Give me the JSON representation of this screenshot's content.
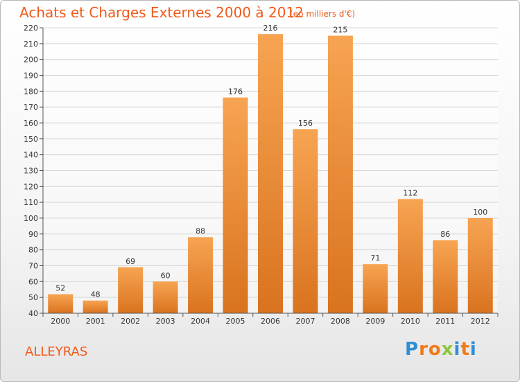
{
  "header": {
    "title": "Achats et Charges Externes 2000 à 2012",
    "unit_note": "(en milliers d'€)"
  },
  "footer": {
    "location": "ALLEYRAS",
    "logo_letters": [
      "P",
      "r",
      "o",
      "x",
      "i",
      "t",
      "i"
    ]
  },
  "colors": {
    "title": "#f05a1a",
    "bar_top": "#f7a452",
    "bar_bottom": "#d9731f",
    "logo": [
      "#2e8fd6",
      "#f07a1a",
      "#f07a1a",
      "#8cc63f",
      "#2e8fd6",
      "#f07a1a",
      "#2e8fd6"
    ]
  },
  "chart_data": {
    "type": "bar",
    "title": "Achats et Charges Externes 2000 à 2012",
    "subtitle": "(en milliers d'€)",
    "xlabel": "",
    "ylabel": "",
    "categories": [
      "2000",
      "2001",
      "2002",
      "2003",
      "2004",
      "2005",
      "2006",
      "2007",
      "2008",
      "2009",
      "2010",
      "2011",
      "2012"
    ],
    "values": [
      52,
      48,
      69,
      60,
      88,
      176,
      216,
      156,
      215,
      71,
      112,
      86,
      100
    ],
    "ylim": [
      40,
      220
    ],
    "yticks": [
      40,
      50,
      60,
      70,
      80,
      90,
      100,
      110,
      120,
      130,
      140,
      150,
      160,
      170,
      180,
      190,
      200,
      210,
      220
    ],
    "grid": true,
    "legend": "none"
  }
}
